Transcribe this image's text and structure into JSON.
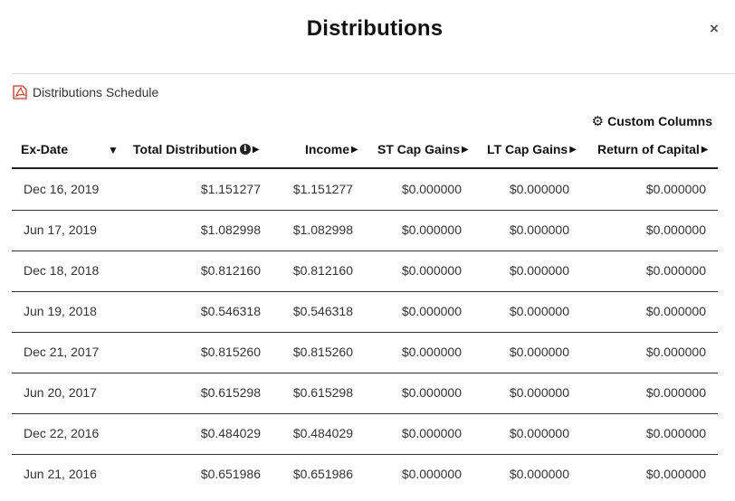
{
  "modal": {
    "title": "Distributions",
    "close_glyph": "×",
    "schedule_link": {
      "label": "Distributions Schedule",
      "icon": "pdf-icon"
    },
    "custom_columns": {
      "label": "Custom Columns",
      "icon": "gear-icon"
    }
  },
  "table": {
    "columns": [
      {
        "label": "Ex-Date",
        "sort": "▼"
      },
      {
        "label": "Total Distribution",
        "info": "i",
        "arrow": "▶"
      },
      {
        "label": "Income",
        "arrow": "▶"
      },
      {
        "label": "ST Cap Gains",
        "arrow": "▶"
      },
      {
        "label": "LT Cap Gains",
        "arrow": "▶"
      },
      {
        "label": "Return of Capital",
        "arrow": "▶"
      }
    ],
    "rows": [
      [
        "Dec 16, 2019",
        "$1.151277",
        "$1.151277",
        "$0.000000",
        "$0.000000",
        "$0.000000"
      ],
      [
        "Jun 17, 2019",
        "$1.082998",
        "$1.082998",
        "$0.000000",
        "$0.000000",
        "$0.000000"
      ],
      [
        "Dec 18, 2018",
        "$0.812160",
        "$0.812160",
        "$0.000000",
        "$0.000000",
        "$0.000000"
      ],
      [
        "Jun 19, 2018",
        "$0.546318",
        "$0.546318",
        "$0.000000",
        "$0.000000",
        "$0.000000"
      ],
      [
        "Dec 21, 2017",
        "$0.815260",
        "$0.815260",
        "$0.000000",
        "$0.000000",
        "$0.000000"
      ],
      [
        "Jun 20, 2017",
        "$0.615298",
        "$0.615298",
        "$0.000000",
        "$0.000000",
        "$0.000000"
      ],
      [
        "Dec 22, 2016",
        "$0.484029",
        "$0.484029",
        "$0.000000",
        "$0.000000",
        "$0.000000"
      ],
      [
        "Jun 21, 2016",
        "$0.651986",
        "$0.651986",
        "$0.000000",
        "$0.000000",
        "$0.000000"
      ]
    ]
  }
}
